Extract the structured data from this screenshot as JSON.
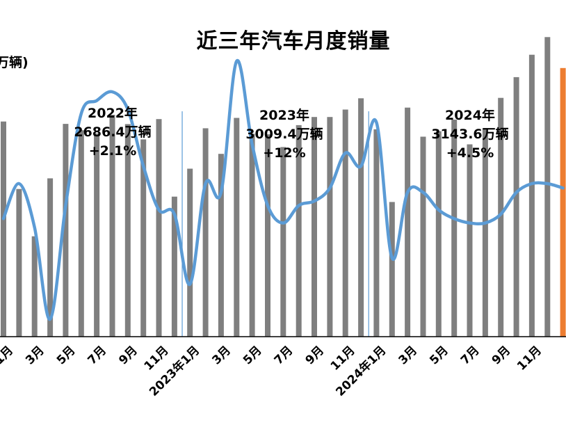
{
  "title": "近三年汽车月度销量",
  "unit": "万辆)",
  "annotations": [
    {
      "year": "2022年",
      "total": "2686.4万辆",
      "growth": "+2.1%"
    },
    {
      "year": "2023年",
      "total": "3009.4万辆",
      "growth": "+12%"
    },
    {
      "year": "2024年",
      "total": "3143.6万辆",
      "growth": "+4.5%"
    }
  ],
  "colors": {
    "bars": "#7f7f7f",
    "line": "#5b9bd5",
    "divider": "#5b9bd5",
    "highlight": "#ed7d31"
  },
  "chart_data": {
    "type": "bar",
    "tick_labels": [
      "1月",
      "3月",
      "5月",
      "7月",
      "9月",
      "11月",
      "2023年1月",
      "3月",
      "5月",
      "7月",
      "9月",
      "11月",
      "2024年1月",
      "3月",
      "5月",
      "7月",
      "9月",
      "11月"
    ],
    "series": [
      {
        "kind": "bar",
        "values": [
          253.1,
          173.7,
          118.1,
          186.2,
          250.3,
          242.8,
          239.0,
          261.0,
          250.0,
          232.0,
          255.9,
          164.7,
          197.6,
          245.1,
          215.0,
          257.3,
          238.7,
          238.0,
          223.0,
          248.8,
          258.4,
          258.4,
          267.1,
          280.4,
          243.9,
          158.4,
          269.4,
          235.2,
          241.7,
          255.3,
          226.2,
          245.3,
          280.9,
          305.3,
          331.6,
          352.4,
          316.0
        ]
      },
      {
        "kind": "line",
        "values": [
          2,
          10,
          0,
          -21,
          5,
          26,
          29,
          31,
          27,
          14,
          4,
          3,
          -13,
          10,
          8,
          38,
          19,
          5,
          1,
          5,
          6,
          9,
          17,
          14,
          24,
          -7,
          8,
          8,
          4,
          2,
          1,
          1,
          3,
          8,
          10,
          10,
          9
        ]
      }
    ],
    "ylim": [
      0,
      360
    ],
    "y2lim": [
      -25,
      45
    ]
  }
}
